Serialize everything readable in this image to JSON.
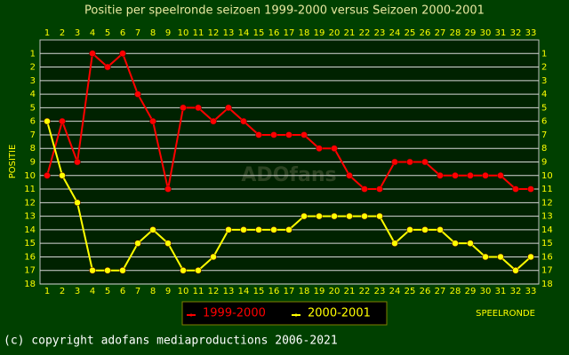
{
  "chart_data": {
    "type": "line",
    "title": "Positie per speelronde seizoen 1999-2000 versus Seizoen 2000-2001",
    "y_label": "POSITIE",
    "x_label": "SPEELRONDE",
    "watermark": "ADOfans",
    "footer": "(c) copyright adofans mediaproductions 2006-2021",
    "categories": [
      1,
      2,
      3,
      4,
      5,
      6,
      7,
      8,
      9,
      10,
      11,
      12,
      13,
      14,
      15,
      16,
      17,
      18,
      19,
      20,
      21,
      22,
      23,
      24,
      25,
      26,
      27,
      28,
      29,
      30,
      31,
      32,
      33
    ],
    "ylim": [
      0,
      18
    ],
    "y_inverted": true,
    "yticks": [
      1,
      2,
      3,
      4,
      5,
      6,
      7,
      8,
      9,
      10,
      11,
      12,
      13,
      14,
      15,
      16,
      17,
      18
    ],
    "grid": true,
    "legend": "bottom",
    "series": [
      {
        "name": "1999-2000",
        "color": "#ff0000",
        "values": [
          10,
          6,
          9,
          1,
          2,
          1,
          4,
          6,
          11,
          5,
          5,
          6,
          5,
          6,
          7,
          7,
          7,
          7,
          8,
          8,
          10,
          11,
          11,
          9,
          9,
          9,
          10,
          10,
          10,
          10,
          10,
          11,
          11
        ]
      },
      {
        "name": "2000-2001",
        "color": "#ffff00",
        "values": [
          6,
          10,
          12,
          17,
          17,
          17,
          15,
          14,
          15,
          17,
          17,
          16,
          14,
          14,
          14,
          14,
          14,
          13,
          13,
          13,
          13,
          13,
          13,
          15,
          14,
          14,
          14,
          15,
          15,
          16,
          16,
          17,
          16
        ]
      }
    ]
  }
}
